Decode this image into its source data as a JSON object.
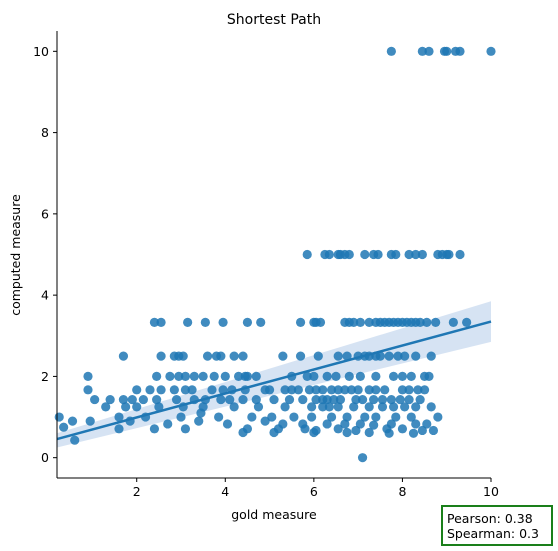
{
  "chart_data": {
    "type": "scatter",
    "title": "Shortest Path",
    "xlabel": "gold measure",
    "ylabel": "computed measure",
    "xlim": [
      0.2,
      10
    ],
    "ylim": [
      -0.5,
      10.5
    ],
    "xticks": [
      2,
      4,
      6,
      8,
      10
    ],
    "yticks": [
      0,
      2,
      4,
      6,
      8,
      10
    ],
    "grid": false,
    "point_color": "#1f77b4",
    "line_color": "#1f77b4",
    "band_color": "#aec7e8",
    "regression": {
      "intercept": 0.4,
      "slope": 0.295,
      "ci_at_xmin": [
        0.25,
        0.6
      ],
      "ci_at_xmax": [
        2.85,
        3.85
      ]
    },
    "points": [
      [
        7.75,
        10
      ],
      [
        8.45,
        10
      ],
      [
        8.6,
        10
      ],
      [
        8.95,
        10
      ],
      [
        9.0,
        10
      ],
      [
        9.2,
        10
      ],
      [
        9.3,
        10
      ],
      [
        10.0,
        10
      ],
      [
        5.85,
        5
      ],
      [
        6.25,
        5
      ],
      [
        6.35,
        5
      ],
      [
        6.55,
        5
      ],
      [
        6.6,
        5
      ],
      [
        6.7,
        5
      ],
      [
        6.8,
        5
      ],
      [
        7.15,
        5
      ],
      [
        7.35,
        5
      ],
      [
        7.45,
        5
      ],
      [
        7.75,
        5
      ],
      [
        7.85,
        5
      ],
      [
        8.15,
        5
      ],
      [
        8.3,
        5
      ],
      [
        8.45,
        5
      ],
      [
        8.8,
        5
      ],
      [
        8.9,
        5
      ],
      [
        9.0,
        5
      ],
      [
        9.05,
        5
      ],
      [
        9.3,
        5
      ],
      [
        2.4,
        3.33
      ],
      [
        2.55,
        3.33
      ],
      [
        3.15,
        3.33
      ],
      [
        3.55,
        3.33
      ],
      [
        3.95,
        3.33
      ],
      [
        4.5,
        3.33
      ],
      [
        4.8,
        3.33
      ],
      [
        5.7,
        3.33
      ],
      [
        6.0,
        3.33
      ],
      [
        6.05,
        3.33
      ],
      [
        6.15,
        3.33
      ],
      [
        6.7,
        3.33
      ],
      [
        6.8,
        3.33
      ],
      [
        6.9,
        3.33
      ],
      [
        7.05,
        3.33
      ],
      [
        7.25,
        3.33
      ],
      [
        7.4,
        3.33
      ],
      [
        7.5,
        3.33
      ],
      [
        7.6,
        3.33
      ],
      [
        7.7,
        3.33
      ],
      [
        7.8,
        3.33
      ],
      [
        7.9,
        3.33
      ],
      [
        8.0,
        3.33
      ],
      [
        8.1,
        3.33
      ],
      [
        8.2,
        3.33
      ],
      [
        8.3,
        3.33
      ],
      [
        8.4,
        3.33
      ],
      [
        8.55,
        3.33
      ],
      [
        8.75,
        3.33
      ],
      [
        9.15,
        3.33
      ],
      [
        9.45,
        3.33
      ],
      [
        1.7,
        2.5
      ],
      [
        2.55,
        2.5
      ],
      [
        2.85,
        2.5
      ],
      [
        2.95,
        2.5
      ],
      [
        3.05,
        2.5
      ],
      [
        3.6,
        2.5
      ],
      [
        3.8,
        2.5
      ],
      [
        3.9,
        2.5
      ],
      [
        4.2,
        2.5
      ],
      [
        4.4,
        2.5
      ],
      [
        5.3,
        2.5
      ],
      [
        5.7,
        2.5
      ],
      [
        6.1,
        2.5
      ],
      [
        6.55,
        2.5
      ],
      [
        6.75,
        2.5
      ],
      [
        7.0,
        2.5
      ],
      [
        7.15,
        2.5
      ],
      [
        7.25,
        2.5
      ],
      [
        7.4,
        2.5
      ],
      [
        7.5,
        2.5
      ],
      [
        7.7,
        2.5
      ],
      [
        7.9,
        2.5
      ],
      [
        8.05,
        2.5
      ],
      [
        8.3,
        2.5
      ],
      [
        8.65,
        2.5
      ],
      [
        0.9,
        2
      ],
      [
        2.45,
        2
      ],
      [
        2.75,
        2
      ],
      [
        2.95,
        2
      ],
      [
        3.1,
        2
      ],
      [
        3.3,
        2
      ],
      [
        3.5,
        2
      ],
      [
        3.75,
        2
      ],
      [
        4.0,
        2
      ],
      [
        4.3,
        2
      ],
      [
        4.45,
        2
      ],
      [
        4.5,
        2
      ],
      [
        4.7,
        2
      ],
      [
        5.5,
        2
      ],
      [
        5.85,
        2
      ],
      [
        6.0,
        2
      ],
      [
        6.3,
        2
      ],
      [
        6.5,
        2
      ],
      [
        6.8,
        2
      ],
      [
        7.05,
        2
      ],
      [
        7.4,
        2
      ],
      [
        7.8,
        2
      ],
      [
        8.0,
        2
      ],
      [
        8.2,
        2
      ],
      [
        8.5,
        2
      ],
      [
        8.6,
        2
      ],
      [
        0.9,
        1.67
      ],
      [
        2.0,
        1.67
      ],
      [
        2.3,
        1.67
      ],
      [
        2.55,
        1.67
      ],
      [
        2.85,
        1.67
      ],
      [
        3.1,
        1.67
      ],
      [
        3.25,
        1.67
      ],
      [
        3.7,
        1.67
      ],
      [
        3.95,
        1.67
      ],
      [
        4.15,
        1.67
      ],
      [
        4.45,
        1.67
      ],
      [
        4.9,
        1.67
      ],
      [
        5.0,
        1.67
      ],
      [
        5.35,
        1.67
      ],
      [
        5.5,
        1.67
      ],
      [
        5.65,
        1.67
      ],
      [
        5.9,
        1.67
      ],
      [
        6.05,
        1.67
      ],
      [
        6.2,
        1.67
      ],
      [
        6.4,
        1.67
      ],
      [
        6.55,
        1.67
      ],
      [
        6.7,
        1.67
      ],
      [
        6.85,
        1.67
      ],
      [
        7.0,
        1.67
      ],
      [
        7.25,
        1.67
      ],
      [
        7.4,
        1.67
      ],
      [
        7.6,
        1.67
      ],
      [
        8.0,
        1.67
      ],
      [
        8.15,
        1.67
      ],
      [
        8.35,
        1.67
      ],
      [
        8.5,
        1.67
      ],
      [
        1.05,
        1.43
      ],
      [
        1.4,
        1.43
      ],
      [
        1.7,
        1.43
      ],
      [
        1.9,
        1.43
      ],
      [
        2.15,
        1.43
      ],
      [
        2.45,
        1.43
      ],
      [
        2.9,
        1.43
      ],
      [
        3.3,
        1.43
      ],
      [
        3.55,
        1.43
      ],
      [
        3.9,
        1.43
      ],
      [
        4.1,
        1.43
      ],
      [
        4.4,
        1.43
      ],
      [
        4.7,
        1.43
      ],
      [
        5.1,
        1.43
      ],
      [
        5.45,
        1.43
      ],
      [
        5.75,
        1.43
      ],
      [
        6.05,
        1.43
      ],
      [
        6.2,
        1.43
      ],
      [
        6.3,
        1.43
      ],
      [
        6.45,
        1.43
      ],
      [
        6.6,
        1.43
      ],
      [
        6.95,
        1.43
      ],
      [
        7.1,
        1.43
      ],
      [
        7.35,
        1.43
      ],
      [
        7.55,
        1.43
      ],
      [
        7.75,
        1.43
      ],
      [
        7.95,
        1.43
      ],
      [
        8.15,
        1.43
      ],
      [
        8.4,
        1.43
      ],
      [
        1.3,
        1.25
      ],
      [
        1.75,
        1.25
      ],
      [
        2.0,
        1.25
      ],
      [
        2.5,
        1.25
      ],
      [
        3.05,
        1.25
      ],
      [
        3.5,
        1.25
      ],
      [
        4.2,
        1.25
      ],
      [
        4.75,
        1.25
      ],
      [
        5.35,
        1.25
      ],
      [
        5.95,
        1.25
      ],
      [
        6.2,
        1.25
      ],
      [
        6.35,
        1.25
      ],
      [
        6.55,
        1.25
      ],
      [
        6.9,
        1.25
      ],
      [
        7.25,
        1.25
      ],
      [
        7.55,
        1.25
      ],
      [
        7.8,
        1.25
      ],
      [
        8.05,
        1.25
      ],
      [
        8.3,
        1.25
      ],
      [
        8.65,
        1.25
      ],
      [
        1.6,
        1
      ],
      [
        2.2,
        1
      ],
      [
        3.0,
        1
      ],
      [
        3.45,
        1.1
      ],
      [
        3.85,
        1
      ],
      [
        4.6,
        1
      ],
      [
        5.05,
        1
      ],
      [
        5.55,
        1
      ],
      [
        5.95,
        1
      ],
      [
        6.4,
        1
      ],
      [
        6.75,
        1
      ],
      [
        7.15,
        1
      ],
      [
        7.4,
        1
      ],
      [
        7.85,
        1
      ],
      [
        8.2,
        1
      ],
      [
        8.8,
        1
      ],
      [
        0.25,
        1
      ],
      [
        0.55,
        0.9
      ],
      [
        0.95,
        0.9
      ],
      [
        1.85,
        0.9
      ],
      [
        2.7,
        0.83
      ],
      [
        3.4,
        0.9
      ],
      [
        4.05,
        0.83
      ],
      [
        4.9,
        0.9
      ],
      [
        5.3,
        0.83
      ],
      [
        5.75,
        0.83
      ],
      [
        6.3,
        0.83
      ],
      [
        6.7,
        0.83
      ],
      [
        7.05,
        0.83
      ],
      [
        7.35,
        0.8
      ],
      [
        7.75,
        0.83
      ],
      [
        8.3,
        0.83
      ],
      [
        8.55,
        0.83
      ],
      [
        0.35,
        0.75
      ],
      [
        1.6,
        0.71
      ],
      [
        2.4,
        0.71
      ],
      [
        3.1,
        0.71
      ],
      [
        4.5,
        0.71
      ],
      [
        5.2,
        0.71
      ],
      [
        5.8,
        0.71
      ],
      [
        6.05,
        0.67
      ],
      [
        6.55,
        0.71
      ],
      [
        6.95,
        0.67
      ],
      [
        7.65,
        0.71
      ],
      [
        8.0,
        0.71
      ],
      [
        8.45,
        0.67
      ],
      [
        8.7,
        0.67
      ],
      [
        0.6,
        0.43
      ],
      [
        4.4,
        0.62
      ],
      [
        5.1,
        0.62
      ],
      [
        6.0,
        0.62
      ],
      [
        6.75,
        0.62
      ],
      [
        7.25,
        0.62
      ],
      [
        7.7,
        0.6
      ],
      [
        8.25,
        0.6
      ],
      [
        7.1,
        0
      ]
    ]
  },
  "stats": {
    "pearson": "Pearson: 0.38",
    "spearman": "Spearman: 0.3",
    "border_color": "#1a7f1a"
  }
}
